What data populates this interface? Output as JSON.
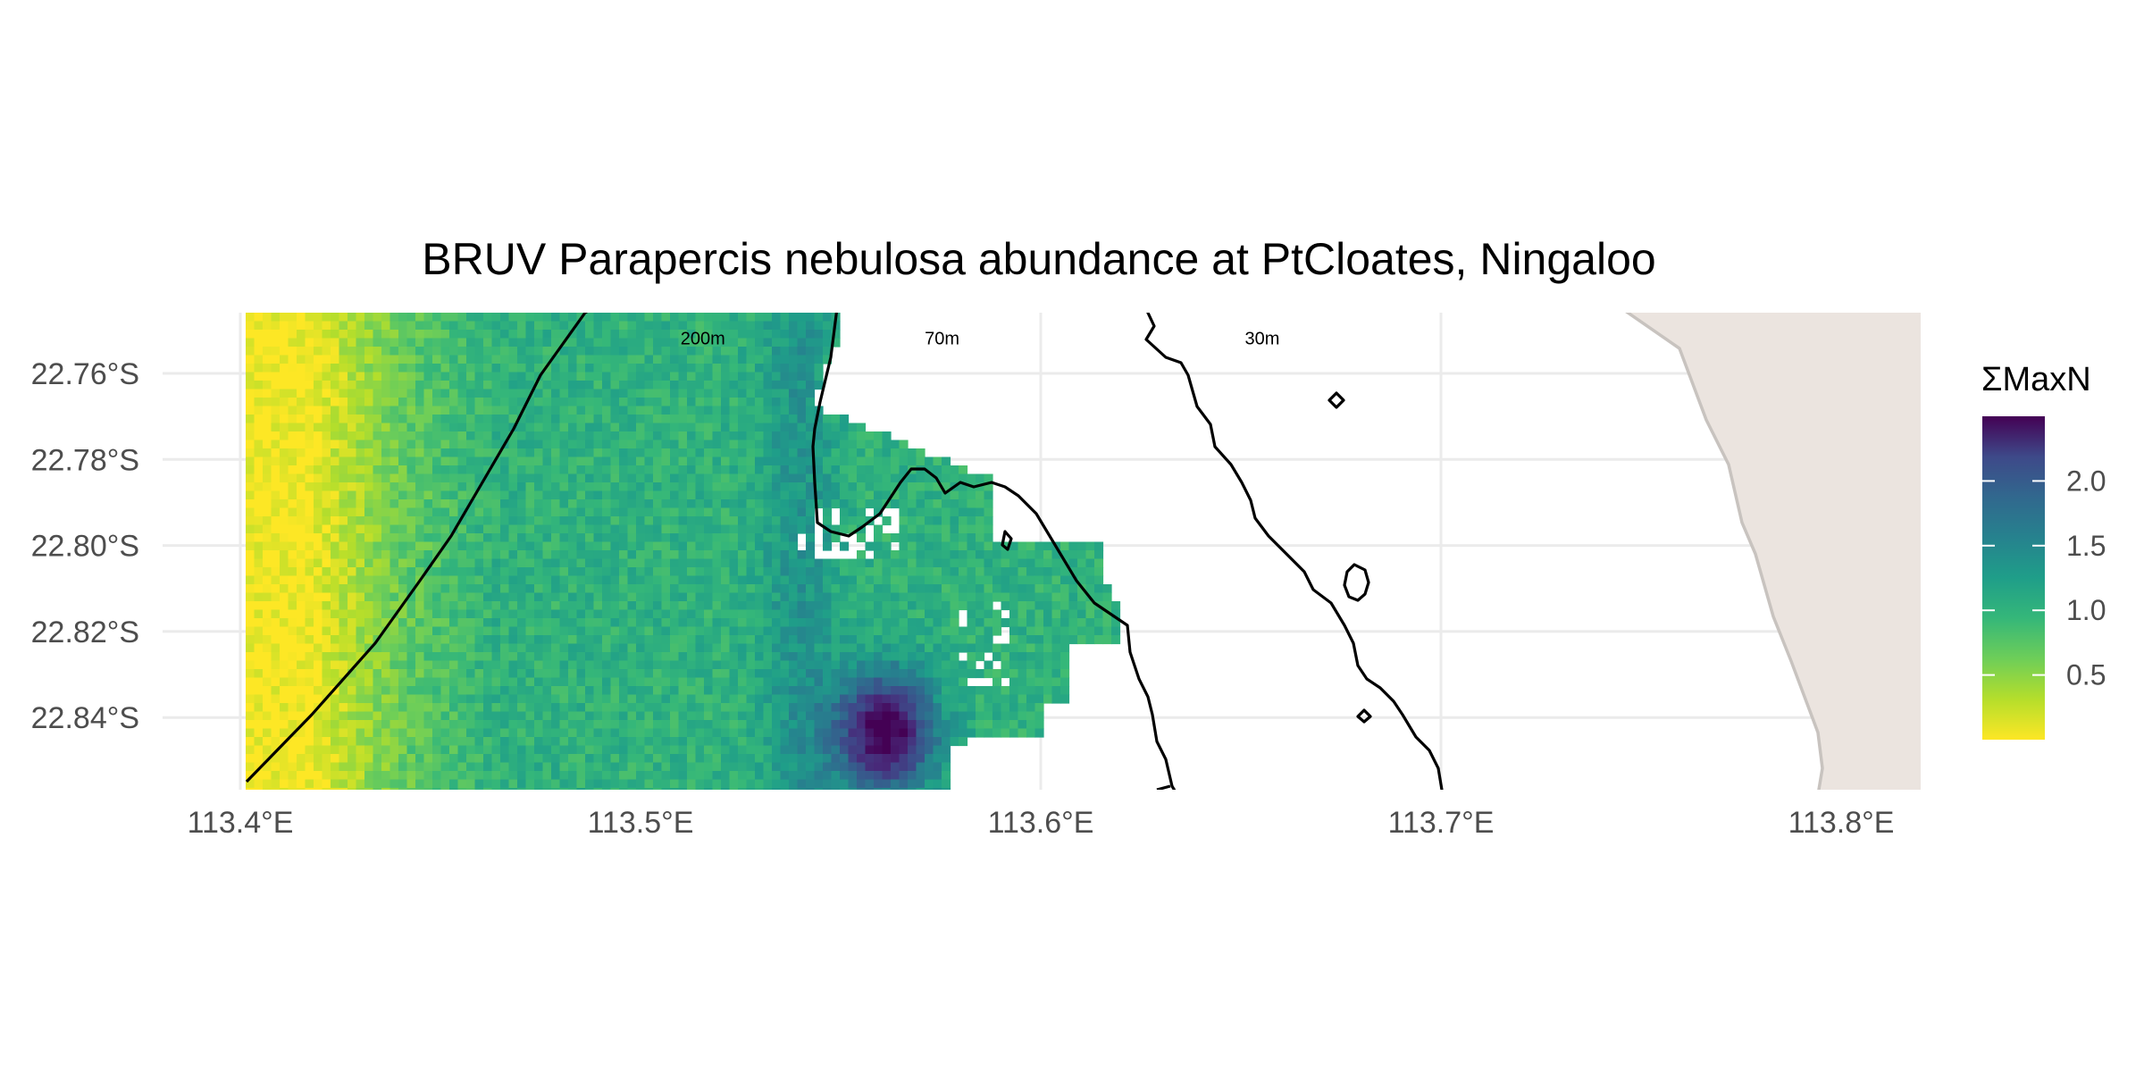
{
  "map": {
    "title": "BRUV Parapercis nebulosa abundance at PtCloates, Ningaloo",
    "x_axis": {
      "ticks": [
        {
          "value": 113.4,
          "label": "113.4°E"
        },
        {
          "value": 113.5,
          "label": "113.5°E"
        },
        {
          "value": 113.6,
          "label": "113.6°E"
        },
        {
          "value": 113.7,
          "label": "113.7°E"
        },
        {
          "value": 113.8,
          "label": "113.8°E"
        }
      ],
      "range": [
        113.38,
        113.82
      ]
    },
    "y_axis": {
      "ticks": [
        {
          "value": -22.76,
          "label": "22.76°S"
        },
        {
          "value": -22.78,
          "label": "22.78°S"
        },
        {
          "value": -22.8,
          "label": "22.80°S"
        },
        {
          "value": -22.82,
          "label": "22.82°S"
        },
        {
          "value": -22.84,
          "label": "22.84°S"
        }
      ],
      "range": [
        -22.855,
        -22.745
      ]
    },
    "contour_labels": [
      {
        "text": "200m",
        "lon": 113.51,
        "lat": -22.7485
      },
      {
        "text": "70m",
        "lon": 113.571,
        "lat": -22.7485
      },
      {
        "text": "30m",
        "lon": 113.651,
        "lat": -22.7485
      }
    ],
    "legend": {
      "title": "ΣMaxN",
      "range": [
        0,
        2.5
      ],
      "ticks": [
        {
          "value": 0.5,
          "label": "0.5"
        },
        {
          "value": 1.0,
          "label": "1.0"
        },
        {
          "value": 1.5,
          "label": "1.5"
        },
        {
          "value": 2.0,
          "label": "2.0"
        }
      ],
      "palette": "viridis (reversed: high = dark purple, low = yellow)"
    },
    "colors": {
      "land": "#ebe4df",
      "coastline": "#c8c3bf",
      "contour": "#000000",
      "gridline": "#ebebeb"
    }
  }
}
